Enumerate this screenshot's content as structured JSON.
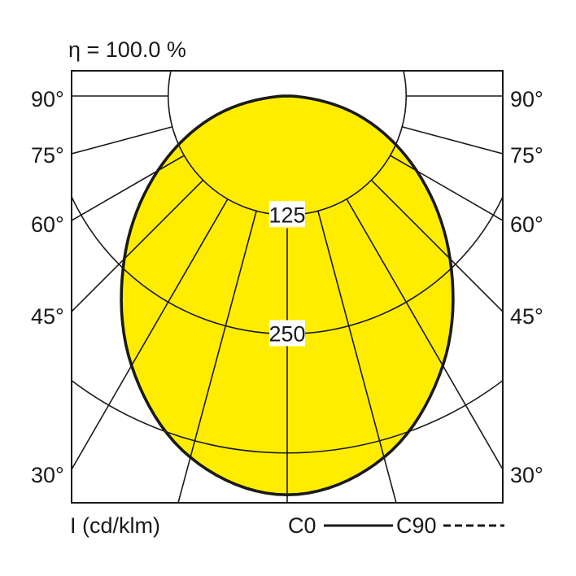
{
  "efficiency_label": "η = 100.0 %",
  "chart_data": {
    "type": "polar",
    "title": "η = 100.0 %",
    "unit_label": "I (cd/klm)",
    "angle_labels": [
      "90°",
      "75°",
      "60°",
      "45°",
      "30°"
    ],
    "angle_label_values": [
      90,
      75,
      60,
      45,
      30
    ],
    "radial_ticks": [
      125,
      250,
      375
    ],
    "radial_tick_labels": [
      "125",
      "250"
    ],
    "angles_deg": [
      0,
      15,
      30,
      45,
      60,
      75,
      90
    ],
    "series": [
      {
        "name": "C0",
        "style": "solid",
        "values": [
          419,
          393,
          327,
          242,
          157,
          77,
          0
        ]
      },
      {
        "name": "C90",
        "style": "dashed",
        "values": [
          419,
          393,
          327,
          242,
          157,
          77,
          0
        ]
      }
    ],
    "fill_color": "#ffed00",
    "grid": true,
    "legend": "bottom-right"
  }
}
